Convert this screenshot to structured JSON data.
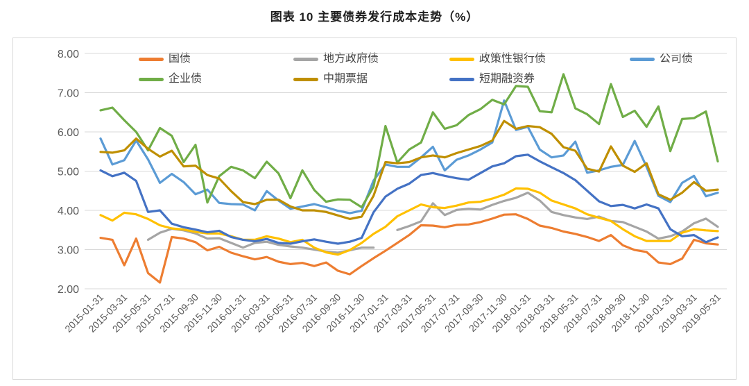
{
  "page": {
    "title": "图表 10 主要债券发行成本走势（%）"
  },
  "chart_data": {
    "type": "line",
    "title": "图表 10 主要债券发行成本走势（%）",
    "ylabel": "",
    "xlabel": "",
    "ylim": [
      2.0,
      8.0
    ],
    "yticks": [
      8.0,
      7.0,
      6.0,
      5.0,
      4.0,
      3.0,
      2.0
    ],
    "ytick_labels": [
      "8.00",
      "7.00",
      "6.00",
      "5.00",
      "4.00",
      "3.00",
      "2.00"
    ],
    "grid": "horizontal",
    "gridline_color": "#d9d9d9",
    "tick_label_color": "#595959",
    "legend_position": "top",
    "xtick_every": 2,
    "x": [
      "2015-01-31",
      "2015-02-28",
      "2015-03-31",
      "2015-04-30",
      "2015-05-31",
      "2015-06-30",
      "2015-07-31",
      "2015-08-31",
      "2015-09-30",
      "2015-10-31",
      "2015-11-30",
      "2015-12-31",
      "2016-01-31",
      "2016-02-29",
      "2016-03-31",
      "2016-04-30",
      "2016-05-31",
      "2016-06-30",
      "2016-07-31",
      "2016-08-31",
      "2016-09-30",
      "2016-10-31",
      "2016-11-30",
      "2016-12-31",
      "2017-01-31",
      "2017-02-28",
      "2017-03-31",
      "2017-04-30",
      "2017-05-31",
      "2017-06-30",
      "2017-07-31",
      "2017-08-31",
      "2017-09-30",
      "2017-10-31",
      "2017-11-30",
      "2017-12-31",
      "2018-01-31",
      "2018-02-28",
      "2018-03-31",
      "2018-04-30",
      "2018-05-31",
      "2018-06-30",
      "2018-07-31",
      "2018-08-31",
      "2018-09-30",
      "2018-10-31",
      "2018-11-30",
      "2018-12-31",
      "2019-01-31",
      "2019-02-28",
      "2019-03-31",
      "2019-04-30",
      "2019-05-31"
    ],
    "xtick_labels_visible": [
      "2015-01-31",
      "2015-03-31",
      "2015-05-31",
      "2015-07-31",
      "2015-09-30",
      "2015-11-30",
      "2016-01-31",
      "2016-03-31",
      "2016-05-31",
      "2016-07-31",
      "2016-09-30",
      "2016-11-30",
      "2017-01-31",
      "2017-03-31",
      "2017-05-31",
      "2017-07-31",
      "2017-09-30",
      "2017-11-30",
      "2018-01-31",
      "2018-03-31",
      "2018-05-31",
      "2018-07-31",
      "2018-09-30",
      "2018-11-30",
      "2019-01-31",
      "2019-03-31",
      "2019-05-31"
    ],
    "series": [
      {
        "name": "国债",
        "color": "#ED7D31",
        "values": [
          3.3,
          3.25,
          2.6,
          3.28,
          2.4,
          2.16,
          3.32,
          3.28,
          3.19,
          2.98,
          3.07,
          2.92,
          2.83,
          2.75,
          2.81,
          2.69,
          2.63,
          2.66,
          2.58,
          2.67,
          2.46,
          2.37,
          2.58,
          2.78,
          2.97,
          3.17,
          3.37,
          3.62,
          3.61,
          3.57,
          3.63,
          3.64,
          3.7,
          3.79,
          3.89,
          3.9,
          3.78,
          3.61,
          3.55,
          3.46,
          3.4,
          3.32,
          3.22,
          3.37,
          3.11,
          2.99,
          2.94,
          2.67,
          2.63,
          2.77,
          3.25,
          3.16,
          3.13
        ]
      },
      {
        "name": "地方政府债",
        "color": "#A5A5A5",
        "values": [
          null,
          null,
          null,
          null,
          3.25,
          3.43,
          3.53,
          3.49,
          3.41,
          3.28,
          3.29,
          3.17,
          3.05,
          3.17,
          3.2,
          3.12,
          3.08,
          3.05,
          3.0,
          2.95,
          2.92,
          2.98,
          3.05,
          3.05,
          null,
          3.5,
          3.6,
          3.72,
          4.18,
          3.88,
          4.01,
          4.04,
          4.02,
          4.14,
          4.24,
          4.32,
          4.45,
          4.25,
          3.96,
          3.88,
          3.82,
          3.78,
          3.84,
          3.73,
          3.7,
          3.58,
          3.46,
          3.28,
          3.34,
          3.46,
          3.67,
          3.79,
          3.58
        ]
      },
      {
        "name": "政策性银行债",
        "color": "#FFC000",
        "values": [
          3.88,
          3.74,
          3.94,
          3.9,
          3.78,
          3.62,
          3.54,
          3.51,
          3.45,
          3.41,
          3.41,
          3.34,
          3.25,
          3.25,
          3.34,
          3.28,
          3.19,
          3.25,
          3.05,
          2.93,
          2.87,
          2.99,
          3.17,
          3.4,
          3.58,
          3.85,
          4.0,
          4.15,
          4.08,
          4.06,
          4.12,
          4.2,
          4.22,
          4.3,
          4.4,
          4.56,
          4.55,
          4.45,
          4.25,
          4.15,
          4.05,
          3.9,
          3.81,
          3.73,
          3.52,
          3.34,
          3.22,
          3.22,
          3.22,
          3.43,
          3.52,
          3.49,
          3.47
        ]
      },
      {
        "name": "公司债",
        "color": "#5B9BD5",
        "values": [
          5.83,
          5.17,
          5.28,
          5.78,
          5.3,
          4.7,
          4.93,
          4.72,
          4.41,
          4.53,
          4.19,
          4.16,
          4.15,
          4.0,
          4.49,
          4.25,
          4.04,
          4.1,
          4.16,
          4.08,
          3.99,
          3.93,
          3.99,
          4.76,
          5.17,
          5.11,
          5.11,
          5.35,
          5.62,
          5.02,
          5.29,
          5.4,
          5.55,
          5.73,
          6.8,
          6.05,
          6.13,
          5.55,
          5.35,
          5.4,
          5.75,
          4.96,
          5.02,
          5.11,
          5.16,
          5.77,
          5.11,
          4.37,
          4.21,
          4.7,
          4.88,
          4.36,
          4.45
        ]
      },
      {
        "name": "企业债",
        "color": "#70AD47",
        "values": [
          6.55,
          6.62,
          6.3,
          6.0,
          5.53,
          6.1,
          5.9,
          5.23,
          5.67,
          4.2,
          4.87,
          5.11,
          5.02,
          4.82,
          5.24,
          4.94,
          4.31,
          5.02,
          4.52,
          4.22,
          4.28,
          4.27,
          4.08,
          4.6,
          6.15,
          5.22,
          5.55,
          5.73,
          6.5,
          6.08,
          6.17,
          6.43,
          6.58,
          6.82,
          6.7,
          7.17,
          7.15,
          6.53,
          6.5,
          7.47,
          6.6,
          6.45,
          6.2,
          7.22,
          6.38,
          6.54,
          6.13,
          6.65,
          5.51,
          6.33,
          6.35,
          6.52,
          5.25
        ]
      },
      {
        "name": "中期票据",
        "color": "#BF8F00",
        "values": [
          5.49,
          5.47,
          5.53,
          5.83,
          5.57,
          5.37,
          5.52,
          5.12,
          5.14,
          4.9,
          4.81,
          4.49,
          4.21,
          4.16,
          4.27,
          4.27,
          4.1,
          4.0,
          4.0,
          3.96,
          3.87,
          3.78,
          3.84,
          4.37,
          5.23,
          5.2,
          5.23,
          5.35,
          5.4,
          5.35,
          5.46,
          5.55,
          5.64,
          5.78,
          6.28,
          6.08,
          6.15,
          6.12,
          5.95,
          5.61,
          5.52,
          5.06,
          4.99,
          5.63,
          5.14,
          4.98,
          5.2,
          4.41,
          4.27,
          4.45,
          4.72,
          4.5,
          4.53
        ]
      },
      {
        "name": "短期融资券",
        "color": "#4472C4",
        "values": [
          5.02,
          4.87,
          4.96,
          4.75,
          3.96,
          4.0,
          3.66,
          3.57,
          3.51,
          3.44,
          3.48,
          3.32,
          3.25,
          3.21,
          3.27,
          3.17,
          3.15,
          3.21,
          3.26,
          3.2,
          3.15,
          3.2,
          3.3,
          3.95,
          4.35,
          4.55,
          4.68,
          4.9,
          4.95,
          4.88,
          4.82,
          4.78,
          4.95,
          5.12,
          5.2,
          5.38,
          5.42,
          5.25,
          5.1,
          4.95,
          4.77,
          4.5,
          4.23,
          4.11,
          4.14,
          4.05,
          4.15,
          4.05,
          3.52,
          3.34,
          3.37,
          3.19,
          3.31
        ]
      }
    ]
  },
  "legend_layout": {
    "rows": [
      [
        0,
        1,
        2,
        3
      ],
      [
        4,
        5,
        6
      ]
    ]
  }
}
